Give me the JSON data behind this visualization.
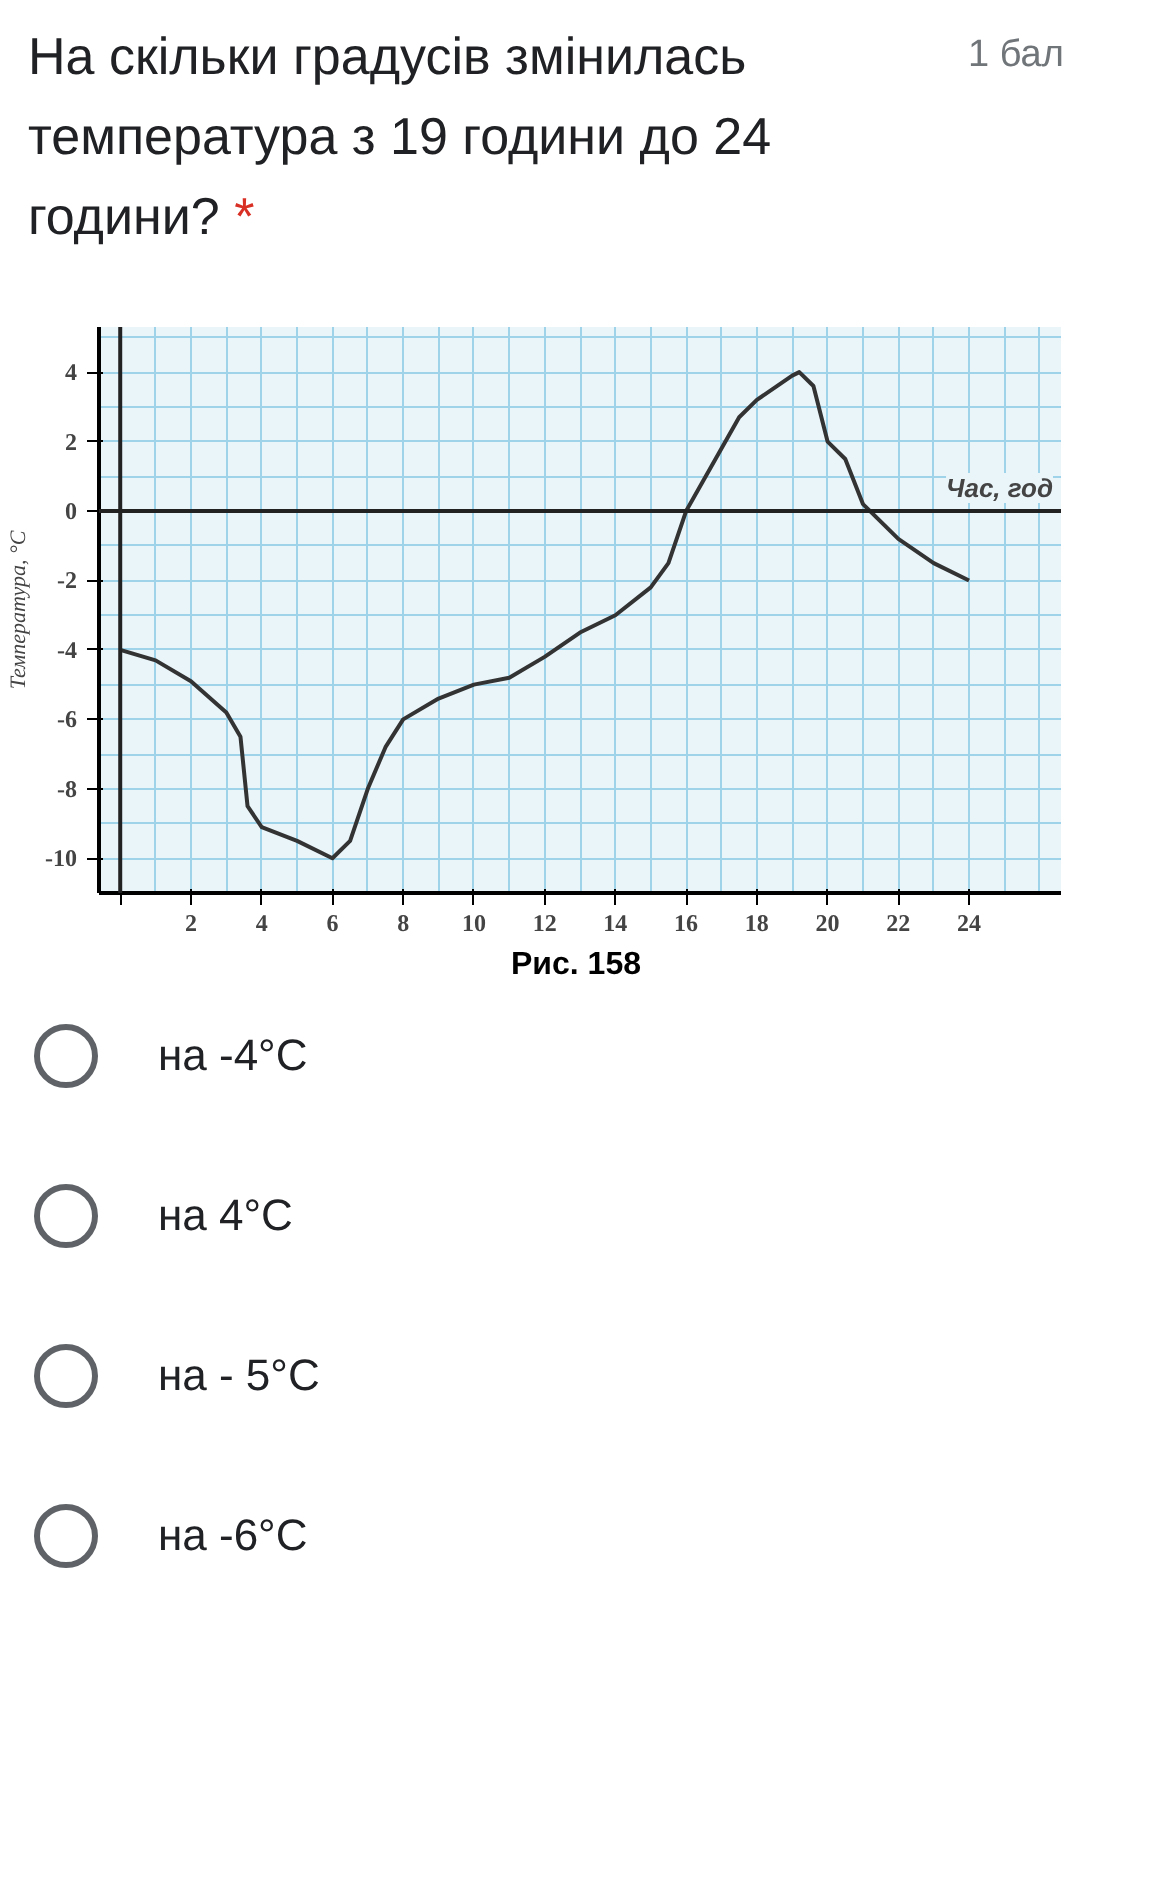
{
  "chart_data": {
    "type": "line",
    "title": "На скільки градусів змінилась температура з 19 години до 24 години?",
    "annotations": [
      "*",
      "1 бал",
      "Рис. 158",
      "на -4°C",
      "на 4°C",
      "на - 5°C",
      "на -6°C"
    ],
    "xlabel": "Час, год",
    "ylabel": "Температура, °С",
    "x": [
      0,
      1,
      2,
      3,
      3.4,
      3.6,
      4,
      5,
      6,
      6.5,
      7,
      7.5,
      8,
      9,
      10,
      11,
      12,
      13,
      14,
      15,
      15.5,
      16,
      17,
      17.5,
      18,
      19,
      19.2,
      19.6,
      20,
      20.5,
      21,
      22,
      23,
      24
    ],
    "series": [
      {
        "color": "#333333",
        "values": [
          -4,
          -4.3,
          -4.9,
          -5.8,
          -6.5,
          -8.5,
          -9.1,
          -9.5,
          -10,
          -9.5,
          -8,
          -6.8,
          -6,
          -5.4,
          -5,
          -4.8,
          -4.2,
          -3.5,
          -3,
          -2.2,
          -1.5,
          0,
          1.8,
          2.7,
          3.2,
          3.9,
          4,
          3.6,
          2,
          1.5,
          0.2,
          -0.8,
          -1.5,
          -2
        ]
      }
    ],
    "xlim": [
      -0.6,
      26.6
    ],
    "ylim": [
      -11,
      5.3
    ],
    "xticks": [
      {
        "value": 0,
        "label": null
      },
      2,
      4,
      6,
      8,
      10,
      12,
      14,
      16,
      18,
      20,
      22,
      24
    ],
    "yticks": [
      4,
      2,
      0,
      -2,
      -4,
      -6,
      -8,
      -10
    ],
    "grid": true,
    "marker": "none",
    "line_style": "solid"
  }
}
